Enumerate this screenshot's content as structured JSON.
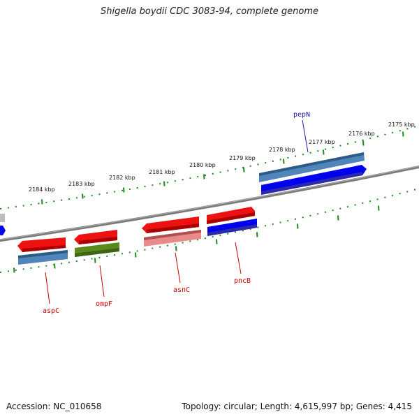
{
  "title": "Shigella boydii CDC 3083-94, complete genome",
  "footer": {
    "accession": "Accession: NC_010658",
    "summary": "Topology: circular; Length: 4,615,997 bp; Genes: 4,415"
  },
  "scale_labels": [
    "2184 kbp",
    "2183 kbp",
    "2182 kbp",
    "2181 kbp",
    "2180 kbp",
    "2179 kbp",
    "2178 kbp",
    "2177 kbp",
    "2176 kbp",
    "2175 kbp"
  ],
  "genes": [
    {
      "name": "aspC",
      "color": "#cc0000"
    },
    {
      "name": "ompF",
      "color": "#cc0000"
    },
    {
      "name": "asnC",
      "color": "#cc0000"
    },
    {
      "name": "pncB",
      "color": "#cc0000"
    },
    {
      "name": "pepN",
      "color": "#1a1aaa"
    }
  ],
  "colors": {
    "cds_red": "#ee1111",
    "cds_blue": "#0000ee",
    "cds_steel": "#4f85b8",
    "cds_olive": "#5a8a1e",
    "cds_pink": "#e88a8a",
    "backbone": "#808080",
    "ruler": "#1f8a1f"
  }
}
